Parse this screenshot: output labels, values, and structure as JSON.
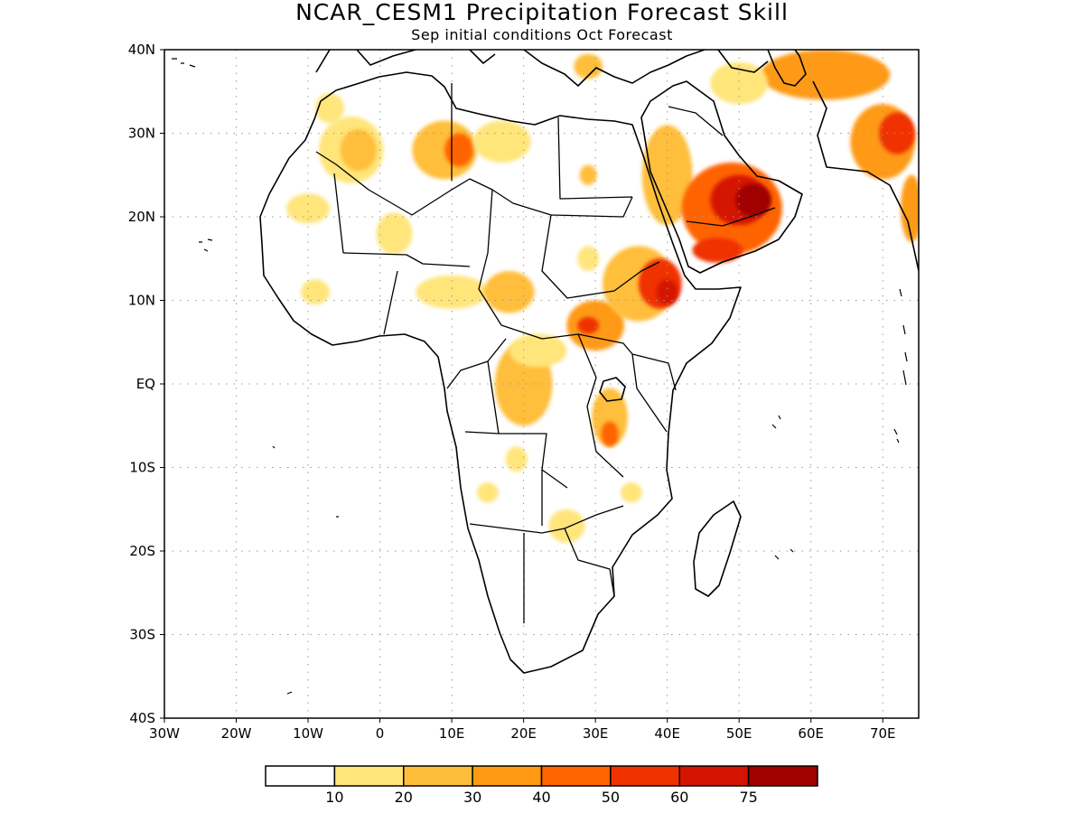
{
  "title": "NCAR_CESM1 Precipitation Forecast Skill",
  "subtitle": "Sep initial conditions  Oct Forecast",
  "x_ticks": [
    "30W",
    "20W",
    "10W",
    "0",
    "10E",
    "20E",
    "30E",
    "40E",
    "50E",
    "60E",
    "70E"
  ],
  "y_ticks": [
    "40N",
    "30N",
    "20N",
    "10N",
    "EQ",
    "10S",
    "20S",
    "30S",
    "40S"
  ],
  "lon_range": [
    -30,
    75
  ],
  "lat_range": [
    -40,
    40
  ],
  "grid": "dotted",
  "colorbar": {
    "labels": [
      "10",
      "20",
      "30",
      "40",
      "50",
      "60",
      "75"
    ],
    "colors": [
      "#ffffff",
      "#ffe57a",
      "#ffbe3a",
      "#ff9a12",
      "#ff6400",
      "#f03200",
      "#d41400",
      "#a00000"
    ]
  },
  "skill_patches": [
    {
      "lon": -4,
      "lat": 28,
      "rx": 4.5,
      "ry": 4,
      "level": 1
    },
    {
      "lon": -3,
      "lat": 28,
      "rx": 2.5,
      "ry": 2.5,
      "level": 2
    },
    {
      "lon": -7,
      "lat": 33,
      "rx": 2,
      "ry": 1.8,
      "level": 1
    },
    {
      "lon": 9,
      "lat": 28,
      "rx": 4.5,
      "ry": 3.5,
      "level": 2
    },
    {
      "lon": 11,
      "lat": 28,
      "rx": 2,
      "ry": 2,
      "level": 4
    },
    {
      "lon": 17,
      "lat": 29,
      "rx": 4,
      "ry": 2.5,
      "level": 1
    },
    {
      "lon": -10,
      "lat": 21,
      "rx": 3,
      "ry": 1.8,
      "level": 1
    },
    {
      "lon": 2,
      "lat": 18,
      "rx": 2.5,
      "ry": 2.5,
      "level": 1
    },
    {
      "lon": 29,
      "lat": 25,
      "rx": 1.2,
      "ry": 1.2,
      "level": 2
    },
    {
      "lon": 29,
      "lat": 15,
      "rx": 1.5,
      "ry": 1.5,
      "level": 1
    },
    {
      "lon": 10,
      "lat": 11,
      "rx": 5,
      "ry": 2,
      "level": 1
    },
    {
      "lon": 18,
      "lat": 11,
      "rx": 3.5,
      "ry": 2.5,
      "level": 2
    },
    {
      "lon": -9,
      "lat": 11,
      "rx": 2,
      "ry": 1.5,
      "level": 1
    },
    {
      "lon": 30,
      "lat": 7,
      "rx": 4,
      "ry": 3,
      "level": 3
    },
    {
      "lon": 29,
      "lat": 7,
      "rx": 1.5,
      "ry": 1,
      "level": 5
    },
    {
      "lon": 36,
      "lat": 12,
      "rx": 5,
      "ry": 4.5,
      "level": 2
    },
    {
      "lon": 39,
      "lat": 12,
      "rx": 3,
      "ry": 3,
      "level": 5
    },
    {
      "lon": 40,
      "lat": 11,
      "rx": 1.5,
      "ry": 1.5,
      "level": 6
    },
    {
      "lon": 20,
      "lat": 0,
      "rx": 4,
      "ry": 5,
      "level": 2
    },
    {
      "lon": 32,
      "lat": -4,
      "rx": 2.5,
      "ry": 3.5,
      "level": 2
    },
    {
      "lon": 32,
      "lat": -6,
      "rx": 1.2,
      "ry": 1.5,
      "level": 4
    },
    {
      "lon": 22,
      "lat": 4,
      "rx": 4,
      "ry": 2,
      "level": 1
    },
    {
      "lon": 26,
      "lat": -17,
      "rx": 2.5,
      "ry": 2,
      "level": 1
    },
    {
      "lon": 15,
      "lat": -13,
      "rx": 1.5,
      "ry": 1.2,
      "level": 1
    },
    {
      "lon": 19,
      "lat": -9,
      "rx": 1.5,
      "ry": 1.5,
      "level": 1
    },
    {
      "lon": 35,
      "lat": -13,
      "rx": 1.5,
      "ry": 1.2,
      "level": 1
    },
    {
      "lon": 40,
      "lat": 25,
      "rx": 3.5,
      "ry": 6,
      "level": 2
    },
    {
      "lon": 49,
      "lat": 21,
      "rx": 7,
      "ry": 5.5,
      "level": 4
    },
    {
      "lon": 50,
      "lat": 22,
      "rx": 4,
      "ry": 3,
      "level": 6
    },
    {
      "lon": 52,
      "lat": 22,
      "rx": 2.5,
      "ry": 2,
      "level": 7
    },
    {
      "lon": 47,
      "lat": 16,
      "rx": 3.5,
      "ry": 1.5,
      "level": 5
    },
    {
      "lon": 62,
      "lat": 37,
      "rx": 9,
      "ry": 3,
      "level": 3
    },
    {
      "lon": 70,
      "lat": 29,
      "rx": 4.5,
      "ry": 4.5,
      "level": 3
    },
    {
      "lon": 72,
      "lat": 30,
      "rx": 2.5,
      "ry": 2.5,
      "level": 5
    },
    {
      "lon": 74,
      "lat": 21,
      "rx": 1.5,
      "ry": 4,
      "level": 3
    },
    {
      "lon": 50,
      "lat": 36,
      "rx": 4,
      "ry": 2.5,
      "level": 1
    },
    {
      "lon": 29,
      "lat": 38,
      "rx": 2,
      "ry": 1.5,
      "level": 2
    }
  ]
}
